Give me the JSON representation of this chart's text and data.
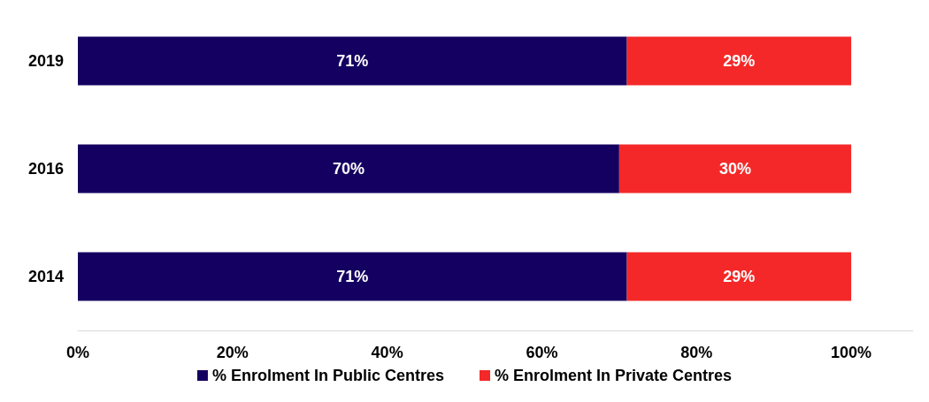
{
  "chart_data": {
    "type": "bar",
    "orientation": "horizontal",
    "stacked": true,
    "categories": [
      "2019",
      "2016",
      "2014"
    ],
    "series": [
      {
        "name": "% Enrolment In Public Centres",
        "color": "#140060",
        "values": [
          71,
          70,
          71
        ],
        "value_labels": [
          "71%",
          "70%",
          "71%"
        ]
      },
      {
        "name": "% Enrolment In Private Centres",
        "color": "#f42828",
        "values": [
          29,
          30,
          29
        ],
        "value_labels": [
          "29%",
          "30%",
          "29%"
        ]
      }
    ],
    "xlim": [
      0,
      108
    ],
    "xticks": [
      {
        "value": 0,
        "label": "0%"
      },
      {
        "value": 20,
        "label": "20%"
      },
      {
        "value": 40,
        "label": "40%"
      },
      {
        "value": 60,
        "label": "60%"
      },
      {
        "value": 80,
        "label": "80%"
      },
      {
        "value": 100,
        "label": "100%"
      }
    ],
    "grid": false,
    "legend": "bottom"
  }
}
